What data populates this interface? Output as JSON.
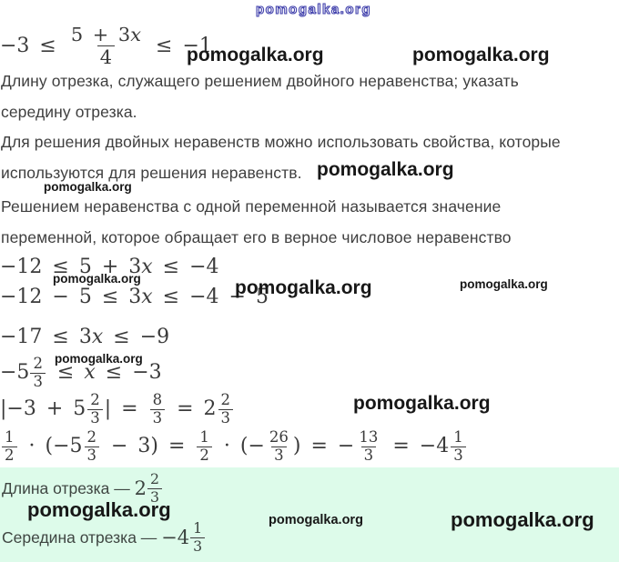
{
  "watermark": "pomogalka.org",
  "problem": {
    "line1": "Длину отрезка, служащего решением двойного неравенства; указать",
    "line2": "середину отрезка."
  },
  "theory": {
    "line1": "Для решения двойных неравенств можно использовать свойства, которые",
    "line2": "используются для решения неравенств.",
    "line3": "Решением неравенства с одной переменной называется значение",
    "line4": "переменной, которое обращает его в верное числовое неравенство"
  },
  "math": {
    "given": [
      {
        "t": "txt",
        "v": "−3 ≤ "
      },
      {
        "t": "frac",
        "n": "5 + 3x",
        "d": "4",
        "big": true
      },
      {
        "t": "txt",
        "v": " ≤ −1"
      }
    ],
    "step1": [
      {
        "t": "txt",
        "v": "−12 ≤ 5 + 3x ≤ −4"
      }
    ],
    "step2": [
      {
        "t": "txt",
        "v": "−12 − 5 ≤ 3x ≤ −4 − 5"
      }
    ],
    "step3": [
      {
        "t": "txt",
        "v": "−17 ≤ 3x ≤ −9"
      }
    ],
    "step4": [
      {
        "t": "mixed",
        "w": "−5",
        "n": "2",
        "d": "3"
      },
      {
        "t": "txt",
        "v": " ≤ x ≤ −3"
      }
    ],
    "length_calc": [
      {
        "t": "txt",
        "v": "|−3 + 5"
      },
      {
        "t": "frac",
        "n": "2",
        "d": "3"
      },
      {
        "t": "txt",
        "v": "| = "
      },
      {
        "t": "frac",
        "n": "8",
        "d": "3"
      },
      {
        "t": "txt",
        "v": " = 2"
      },
      {
        "t": "frac",
        "n": "2",
        "d": "3"
      }
    ],
    "midpoint_calc": [
      {
        "t": "frac",
        "n": "1",
        "d": "2"
      },
      {
        "t": "txt",
        "v": " · (−5"
      },
      {
        "t": "frac",
        "n": "2",
        "d": "3"
      },
      {
        "t": "txt",
        "v": " − 3) = "
      },
      {
        "t": "frac",
        "n": "1",
        "d": "2"
      },
      {
        "t": "txt",
        "v": " · (−"
      },
      {
        "t": "frac",
        "n": "26",
        "d": "3"
      },
      {
        "t": "txt",
        "v": ") = −"
      },
      {
        "t": "frac",
        "n": "13",
        "d": "3"
      },
      {
        "t": "txt",
        "v": " = −4"
      },
      {
        "t": "frac",
        "n": "1",
        "d": "3"
      }
    ]
  },
  "answer": {
    "length_label": "Длина отрезка — ",
    "length_value": [
      {
        "t": "mixed",
        "w": "2",
        "n": "2",
        "d": "3"
      }
    ],
    "midpoint_label": "Середина отрезка — ",
    "midpoint_value": [
      {
        "t": "mixed",
        "w": "−4",
        "n": "1",
        "d": "3"
      }
    ]
  },
  "colors": {
    "highlight": "#ddfbea",
    "accent_outline": "#4343ad",
    "watermark_text": "#171717",
    "body_text": "#3f3f3f",
    "math_text": "#3a3a3a"
  }
}
